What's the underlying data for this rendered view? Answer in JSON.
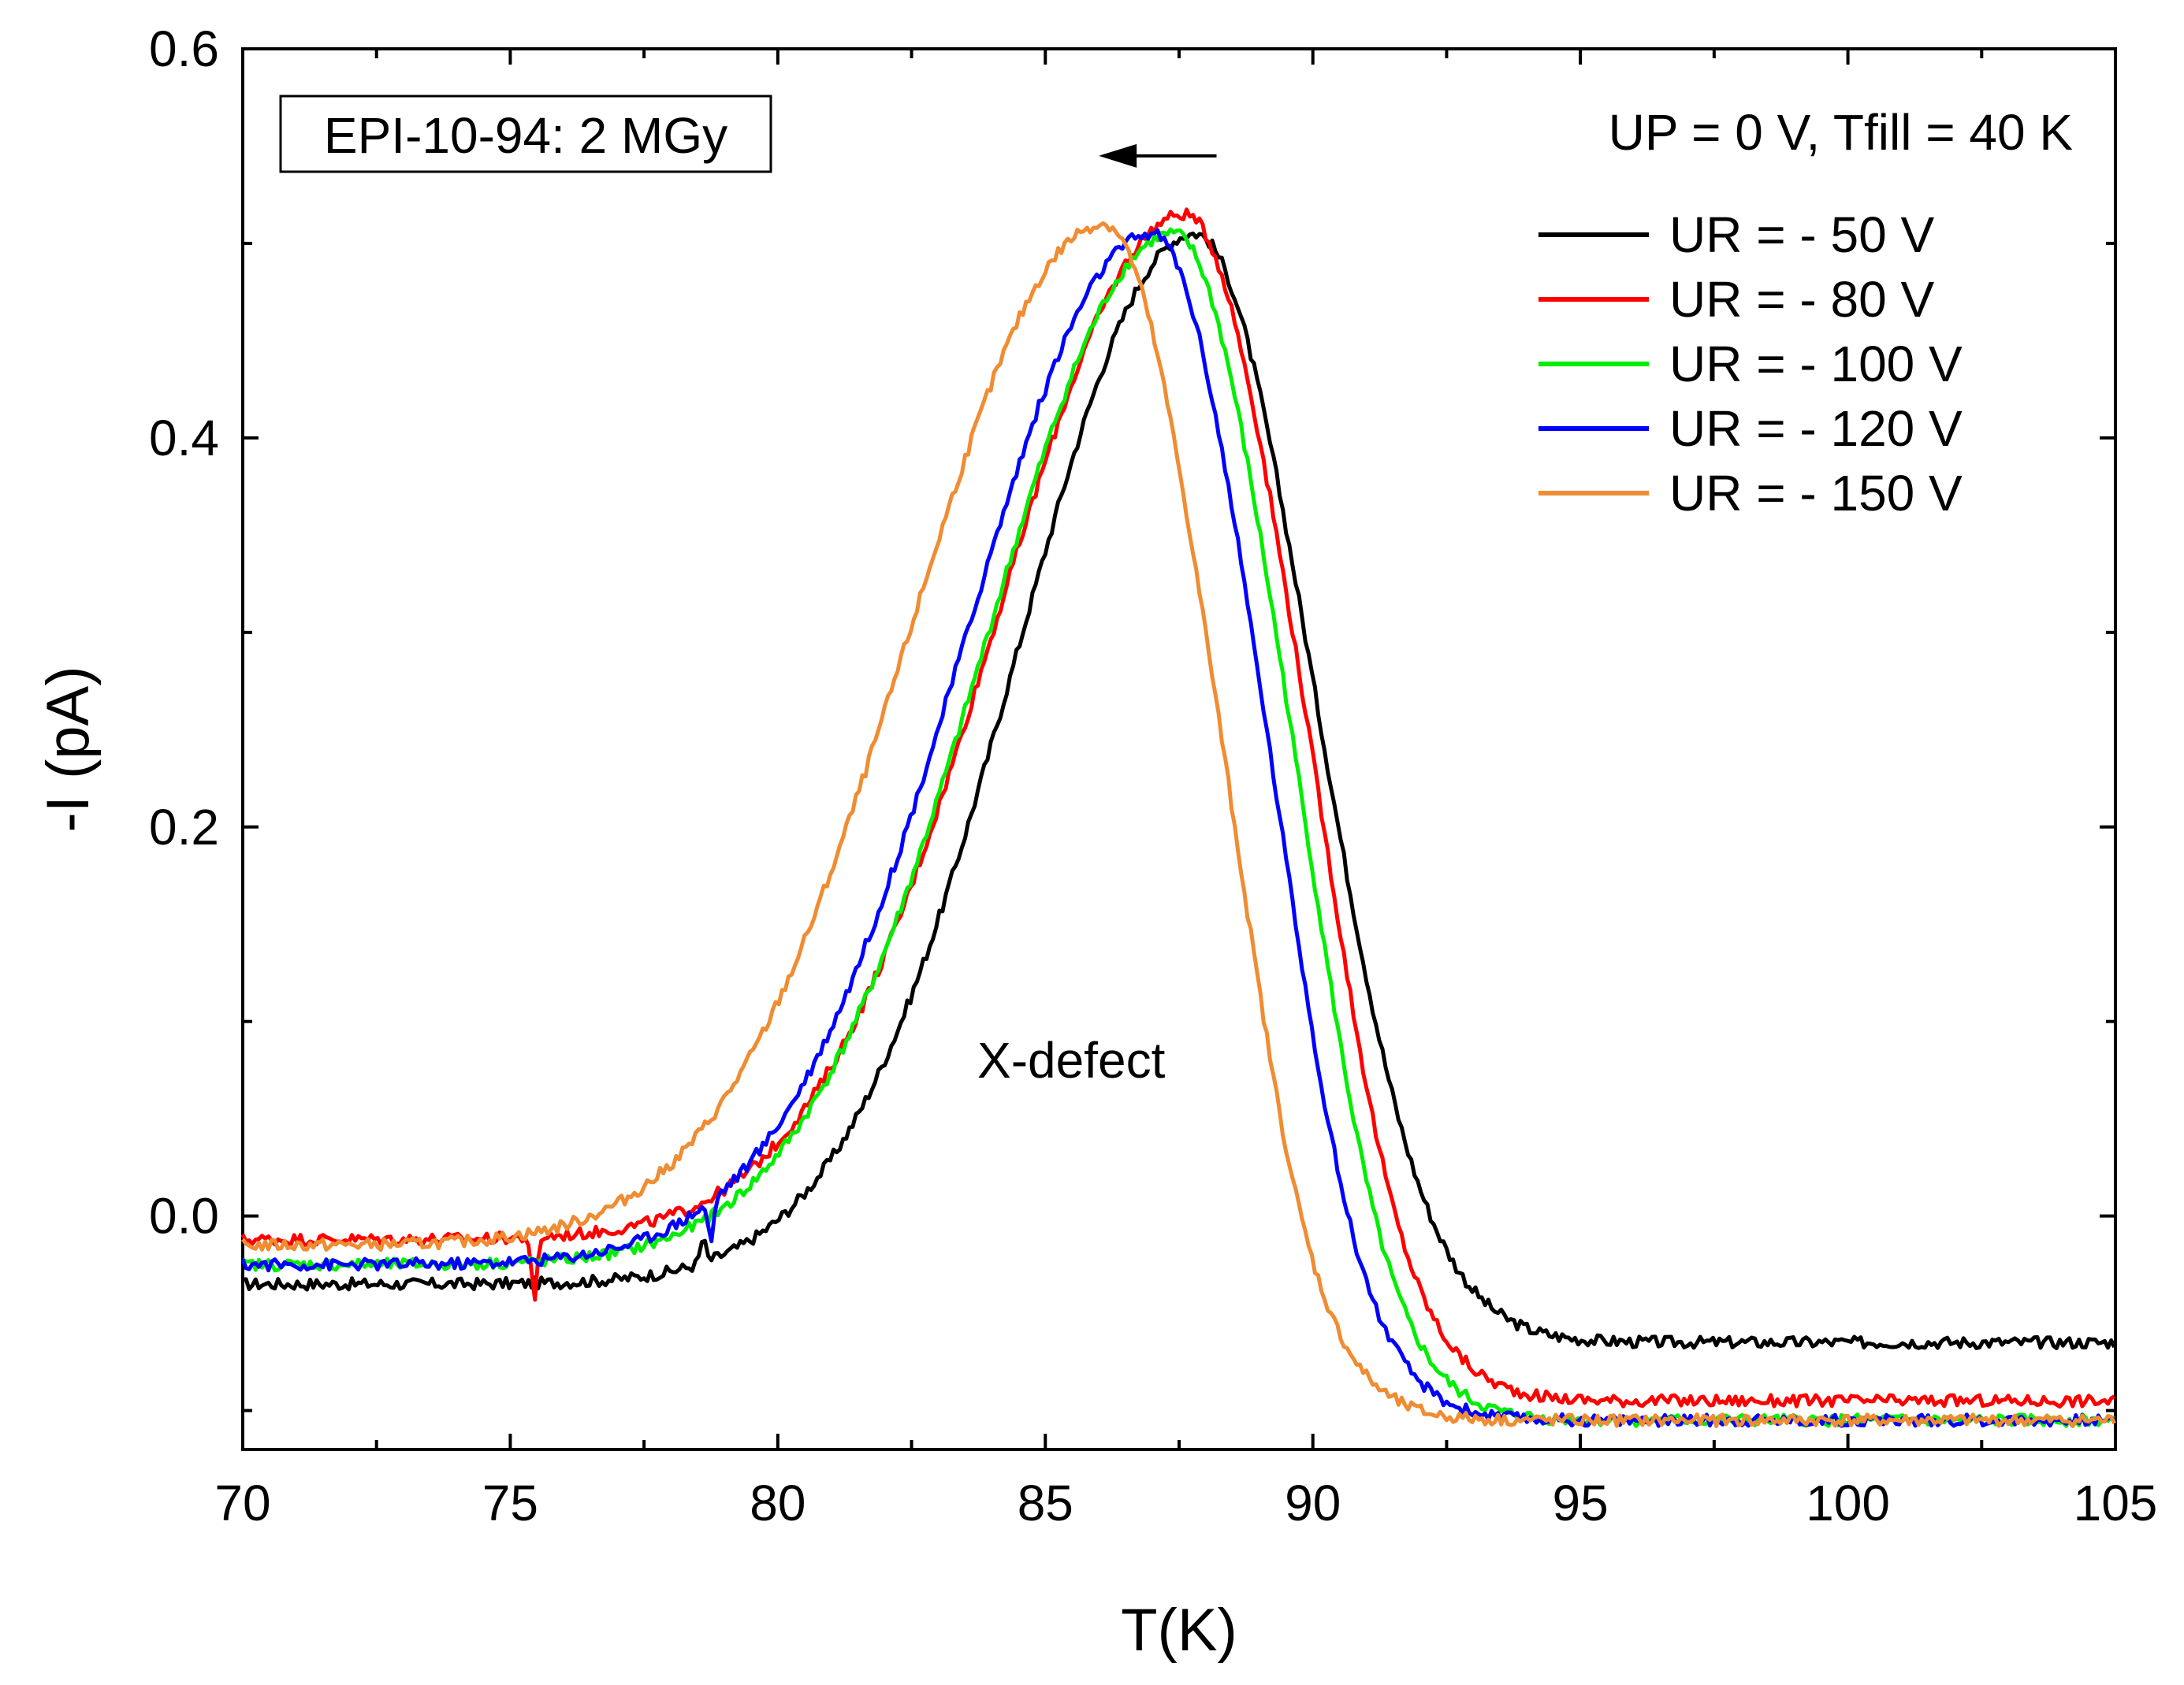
{
  "chart_data": {
    "type": "line",
    "title": "",
    "xlabel": "T(K)",
    "ylabel": "-I (pA)",
    "xlim": [
      70,
      105
    ],
    "ylim": [
      -0.12,
      0.6
    ],
    "x_ticks": [
      70,
      75,
      80,
      85,
      90,
      95,
      100,
      105
    ],
    "x_tick_labels": [
      "70",
      "75",
      "80",
      "85",
      "90",
      "95",
      "100",
      "105"
    ],
    "y_ticks": [
      0.0,
      0.2,
      0.4,
      0.6
    ],
    "y_tick_labels": [
      "0.0",
      "0.2",
      "0.4",
      "0.6"
    ],
    "grid": false,
    "sample_label": "EPI-10-94: 2 MGy",
    "conditions_label": "UP = 0 V, Tfill = 40 K",
    "peak_annotation": "X-defect",
    "shift_arrow": {
      "from_x": 88.2,
      "to_x": 86.0,
      "y": 0.545
    },
    "legend_position": "top-right",
    "series": [
      {
        "name": "UR = - 50 V",
        "color": "#000000",
        "peak_x": 87.8,
        "peak_y": 0.505,
        "sigma_left": 3.3,
        "sigma_right": 2.1,
        "base_left": -0.035,
        "base_right": -0.065,
        "glitches": [
          {
            "x": 78.6,
            "dy": 0.012
          }
        ]
      },
      {
        "name": "UR = - 80 V",
        "color": "#ff0000",
        "peak_x": 87.6,
        "peak_y": 0.515,
        "sigma_left": 3.5,
        "sigma_right": 2.0,
        "base_left": -0.012,
        "base_right": -0.095,
        "glitches": [
          {
            "x": 75.45,
            "dy": -0.035
          }
        ]
      },
      {
        "name": "UR = - 100 V",
        "color": "#00ee00",
        "peak_x": 87.4,
        "peak_y": 0.505,
        "sigma_left": 3.5,
        "sigma_right": 1.95,
        "base_left": -0.025,
        "base_right": -0.105,
        "glitches": []
      },
      {
        "name": "UR = - 120 V",
        "color": "#0000ff",
        "peak_x": 87.0,
        "peak_y": 0.505,
        "sigma_left": 3.5,
        "sigma_right": 1.9,
        "base_left": -0.025,
        "base_right": -0.105,
        "glitches": [
          {
            "x": 78.75,
            "dy": -0.022
          }
        ]
      },
      {
        "name": "UR = - 150 V",
        "color": "#f08c32",
        "peak_x": 86.1,
        "peak_y": 0.51,
        "sigma_left": 3.6,
        "sigma_right": 1.9,
        "base_left": -0.015,
        "base_right": -0.105,
        "glitches": []
      }
    ]
  }
}
